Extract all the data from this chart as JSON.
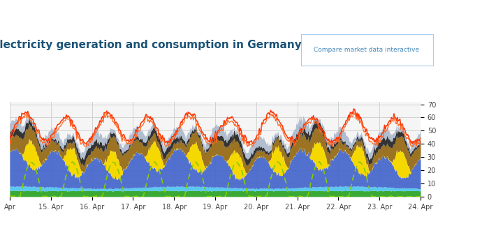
{
  "title": "Electricity generation and consumption in Germany",
  "button_text": "Compare market data interactive",
  "title_color": "#1a5276",
  "title_fontsize": 11,
  "x_labels": [
    "Apr",
    "15. Apr",
    "16. Apr",
    "17. Apr",
    "18. Apr",
    "19. Apr",
    "20. Apr",
    "21. Apr",
    "22. Apr",
    "23. Apr",
    "24. Apr"
  ],
  "y_ticks": [
    0,
    10,
    20,
    30,
    40,
    50,
    60,
    70
  ],
  "ylim": [
    0,
    72
  ],
  "background_color": "#ffffff",
  "plot_bg_color": "#f5f5f5",
  "grid_color": "#cccccc",
  "n_points": 480,
  "colors": {
    "biomass": "#3aaa35",
    "wind_off": "#5bc8f0",
    "wind_on": "#4466cc",
    "solar": "#f5d800",
    "brown_coal": "#9b7322",
    "hard_coal": "#333333",
    "gas": "#aab8cc",
    "nuclear": "#7799bb",
    "pumped": "#4455bb"
  },
  "consumption_color1": "#ff3300",
  "consumption_color2": "#ff6622",
  "solar_forecast_color": "#88cc00"
}
